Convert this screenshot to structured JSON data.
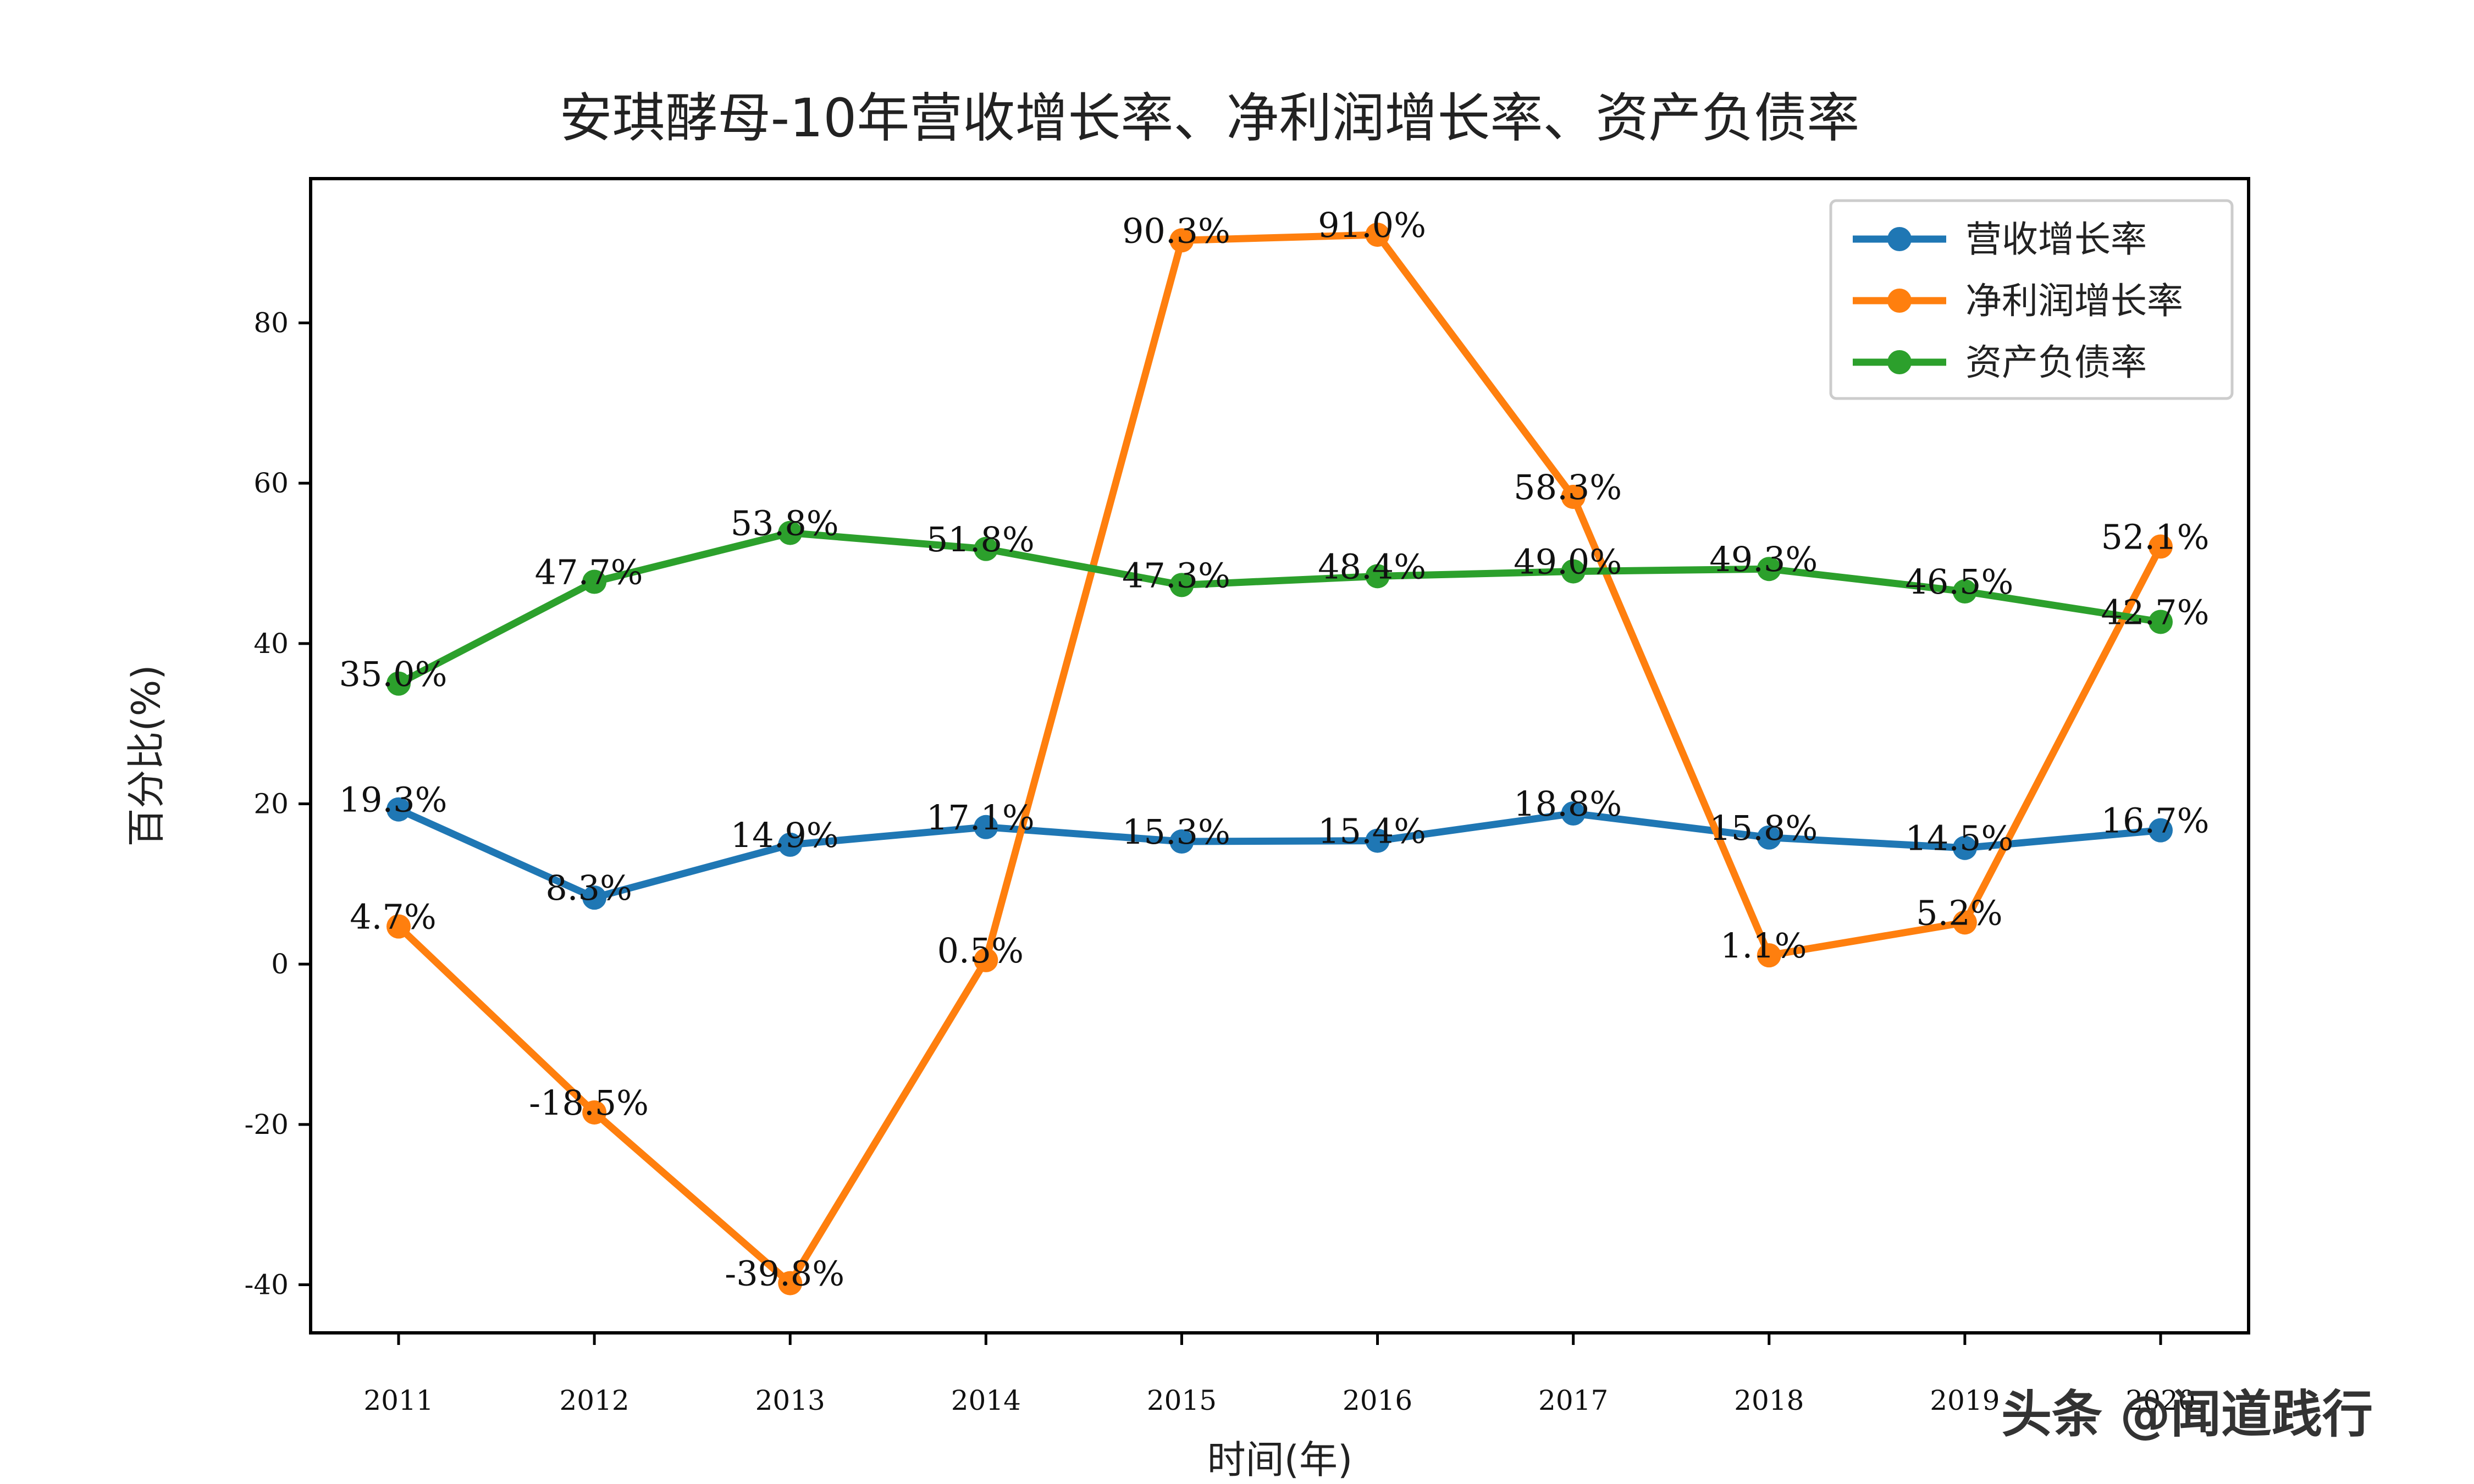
{
  "chart_data": {
    "type": "line",
    "title": "安琪酵母-10年营收增长率、净利润增长率、资产负债率",
    "xlabel": "时间(年)",
    "ylabel": "百分比(%)",
    "categories": [
      "2011",
      "2012",
      "2013",
      "2014",
      "2015",
      "2016",
      "2017",
      "2018",
      "2019",
      "2020"
    ],
    "ylim": [
      -46,
      98
    ],
    "yticks": [
      -40,
      -20,
      0,
      20,
      40,
      60,
      80
    ],
    "legend_position": "top-right",
    "grid": false,
    "series": [
      {
        "name": "营收增长率",
        "color": "#1f77b4",
        "values": [
          19.3,
          8.3,
          14.9,
          17.1,
          15.3,
          15.4,
          18.8,
          15.8,
          14.5,
          16.7
        ],
        "labels": [
          "19.3%",
          "8.3%",
          "14.9%",
          "17.1%",
          "15.3%",
          "15.4%",
          "18.8%",
          "15.8%",
          "14.5%",
          "16.7%"
        ]
      },
      {
        "name": "净利润增长率",
        "color": "#ff7f0e",
        "values": [
          4.7,
          -18.5,
          -39.8,
          0.5,
          90.3,
          91.0,
          58.3,
          1.1,
          5.2,
          52.1
        ],
        "labels": [
          "4.7%",
          "-18.5%",
          "-39.8%",
          "0.5%",
          "90.3%",
          "91.0%",
          "58.3%",
          "1.1%",
          "5.2%",
          "52.1%"
        ]
      },
      {
        "name": "资产负债率",
        "color": "#2ca02c",
        "values": [
          35.0,
          47.7,
          53.8,
          51.8,
          47.3,
          48.4,
          49.0,
          49.3,
          46.5,
          42.7
        ],
        "labels": [
          "35.0%",
          "47.7%",
          "53.8%",
          "51.8%",
          "47.3%",
          "48.4%",
          "49.0%",
          "49.3%",
          "46.5%",
          "42.7%"
        ]
      }
    ]
  },
  "watermark": "头条 @闻道践行"
}
